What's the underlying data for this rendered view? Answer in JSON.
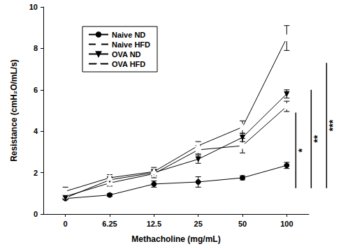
{
  "chart_data": {
    "type": "line",
    "x_label": "Methacholine (mg/mL)",
    "y_label": "Resistance (cmH₂O/mL/s)",
    "categories": [
      0,
      6.25,
      12.5,
      25,
      50,
      100
    ],
    "ylim": [
      0,
      10
    ],
    "yticks": [
      0,
      2,
      4,
      6,
      8,
      10
    ],
    "grid": false,
    "legend": "upper left",
    "series": [
      {
        "name": "Naive ND",
        "color": "#000000",
        "marker": "circle_filled",
        "line_style": "solid",
        "values": [
          0.75,
          0.92,
          1.45,
          1.55,
          1.75,
          2.35
        ],
        "errors": [
          0.05,
          0.07,
          0.15,
          0.25,
          0.1,
          0.15
        ]
      },
      {
        "name": "Naive HFD",
        "color": "#000000",
        "marker": "circle_open",
        "line_style": "solid",
        "values": [
          0.85,
          1.5,
          1.95,
          3.1,
          3.3,
          5.2
        ],
        "errors": [
          0.1,
          0.15,
          0.2,
          0.2,
          0.35,
          0.25
        ]
      },
      {
        "name": "OVA ND",
        "color": "#000000",
        "marker": "triangle_down_filled",
        "line_style": "solid",
        "values": [
          0.78,
          1.65,
          2.0,
          2.65,
          3.7,
          5.8
        ],
        "errors": [
          0.08,
          0.15,
          0.15,
          0.2,
          0.2,
          0.2
        ]
      },
      {
        "name": "OVA HFD",
        "color": "#000000",
        "marker": "triangle_up_open",
        "line_style": "solid",
        "values": [
          1.1,
          1.75,
          2.05,
          3.3,
          4.2,
          8.5
        ],
        "errors": [
          0.2,
          0.15,
          0.2,
          0.2,
          0.3,
          0.6
        ]
      }
    ],
    "significance": [
      {
        "label": "*",
        "y_from": 1.25,
        "y_to": 4.9
      },
      {
        "label": "**",
        "y_from": 1.25,
        "y_to": 6.0
      },
      {
        "label": "***",
        "y_from": 1.25,
        "y_to": 7.3
      }
    ]
  }
}
